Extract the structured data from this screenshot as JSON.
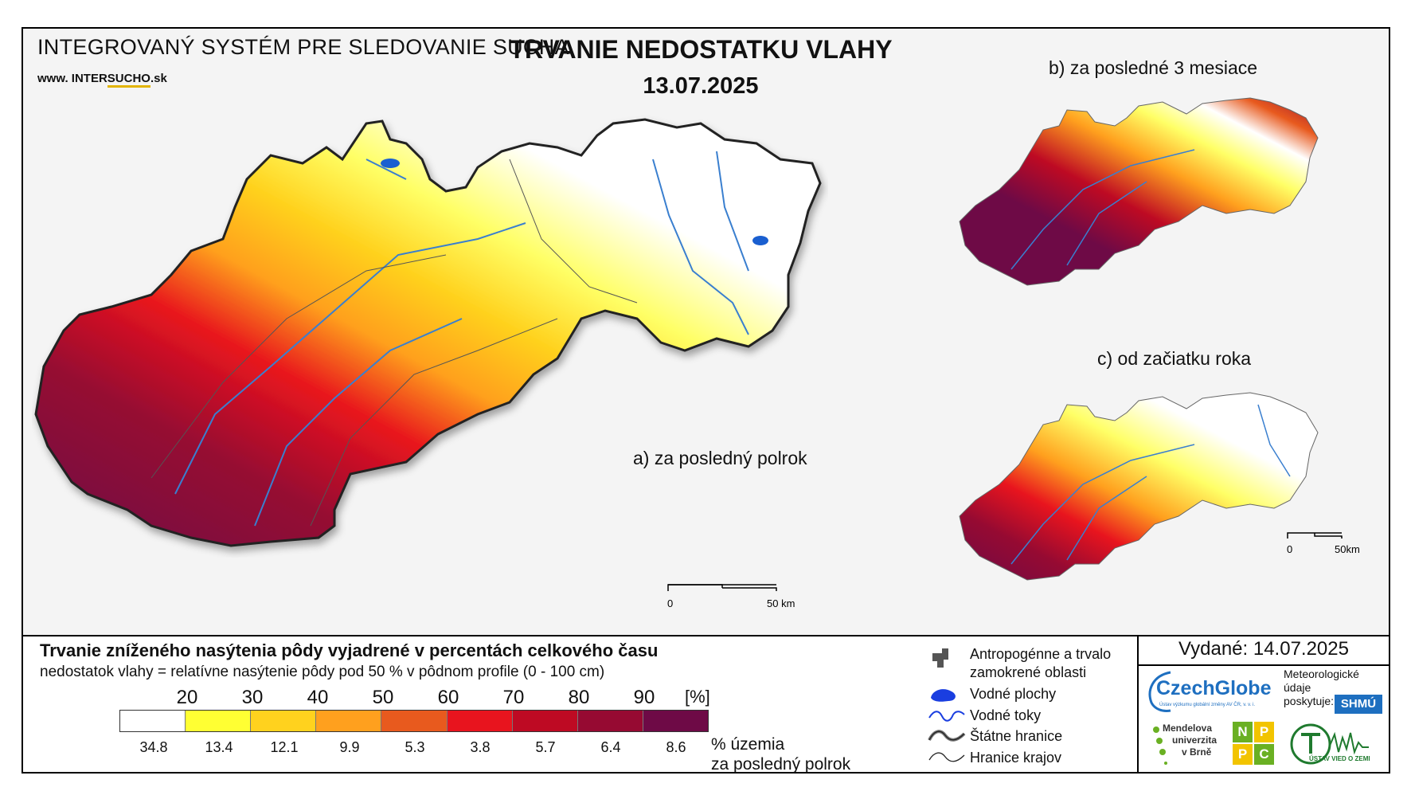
{
  "header": {
    "system_title": "INTEGROVANÝ SYSTÉM PRE SLEDOVANIE SUCHA",
    "website_prefix": "www.",
    "website_name_a": "INTER",
    "website_name_b": "SUCHO",
    "website_suffix": ".sk",
    "title": "TRVANIE NEDOSTATKU VLAHY",
    "date": "13.07.2025"
  },
  "maps": {
    "main_label": "a) za posledný polrok",
    "b_label": "b) za posledné 3 mesiace",
    "c_label": "c) od začiatku roka",
    "main_scale": {
      "zero": "0",
      "end": "50 km"
    },
    "c_scale": {
      "zero": "0",
      "end": "50km"
    }
  },
  "legend": {
    "title": "Trvanie zníženého nasýtenia pôdy vyjadrené v percentách celkového času",
    "subtitle": "nedostatok vlahy = relatívne nasýtenie pôdy pod 50 % v pôdnom profile (0 - 100 cm)",
    "ticks": [
      "20",
      "30",
      "40",
      "50",
      "60",
      "70",
      "80",
      "90"
    ],
    "unit": "[%]",
    "colors": [
      "#ffffff",
      "#ffff33",
      "#ffd21e",
      "#ffa01e",
      "#e85a1e",
      "#e8141e",
      "#be0a23",
      "#960a32",
      "#6e0a46"
    ],
    "percentages": [
      "34.8",
      "13.4",
      "12.1",
      "9.9",
      "5.3",
      "3.8",
      "5.7",
      "6.4",
      "8.6"
    ],
    "territory_line1": "% územia",
    "territory_line2": "za posledný polrok"
  },
  "map_key": {
    "items": [
      {
        "label": "Antropogénne a trvalo zamokrené oblasti",
        "icon": "anthropogenic-area-icon"
      },
      {
        "label": "Vodné plochy",
        "icon": "water-body-icon"
      },
      {
        "label": "Vodné toky",
        "icon": "river-icon"
      },
      {
        "label": "Štátne hranice",
        "icon": "state-border-icon"
      },
      {
        "label": "Hranice krajov",
        "icon": "region-border-icon"
      }
    ],
    "antro_line1": "Antropogénne a trvalo",
    "antro_line2": "zamokrené oblasti"
  },
  "issuer": {
    "issued": "Vydané: 14.07.2025",
    "czechglobe": "CzechGlobe",
    "czechglobe_sub": "Ústav výzkumu globální změny AV ČR, v. v. i.",
    "meteo_line1": "Meteorologické",
    "meteo_line2": "údaje",
    "meteo_line3": "poskytuje:",
    "shmu": "SHMÚ",
    "mendel_line1": "Mendelova",
    "mendel_line2": "univerzita",
    "mendel_line3": "v Brně",
    "nppc": [
      "N",
      "P",
      "P",
      "C"
    ],
    "uvz": "ÚSTAV VIED O ZEMI"
  }
}
